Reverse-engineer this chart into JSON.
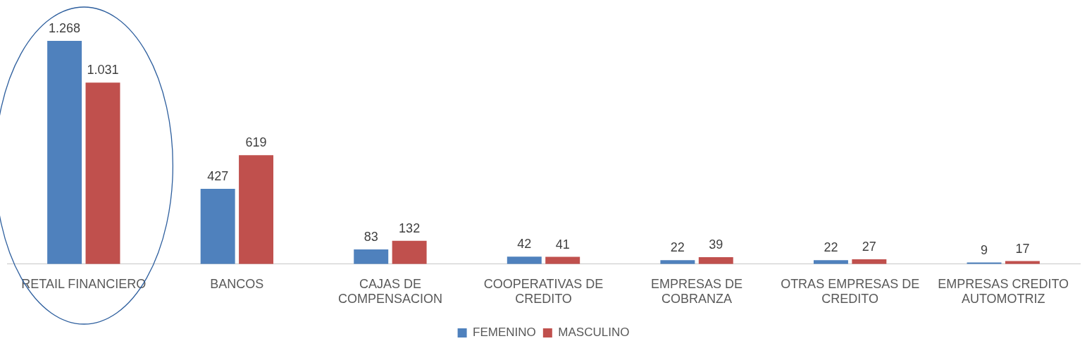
{
  "chart_data": {
    "type": "bar",
    "categories": [
      "RETAIL FINANCIERO",
      "BANCOS",
      "CAJAS DE COMPENSACION",
      "COOPERATIVAS DE CREDITO",
      "EMPRESAS DE COBRANZA",
      "OTRAS EMPRESAS DE CREDITO",
      "EMPRESAS CREDITO AUTOMOTRIZ"
    ],
    "series": [
      {
        "name": "FEMENINO",
        "color": "#4f81bd",
        "values": [
          1268,
          427,
          83,
          42,
          22,
          22,
          9
        ],
        "value_labels": [
          "1.268",
          "427",
          "83",
          "42",
          "22",
          "22",
          "9"
        ]
      },
      {
        "name": "MASCULINO",
        "color": "#c0504d",
        "values": [
          1031,
          619,
          132,
          41,
          39,
          27,
          17
        ],
        "value_labels": [
          "1.031",
          "619",
          "132",
          "41",
          "39",
          "27",
          "17"
        ]
      }
    ],
    "legend": "bottom",
    "grid": false
  }
}
